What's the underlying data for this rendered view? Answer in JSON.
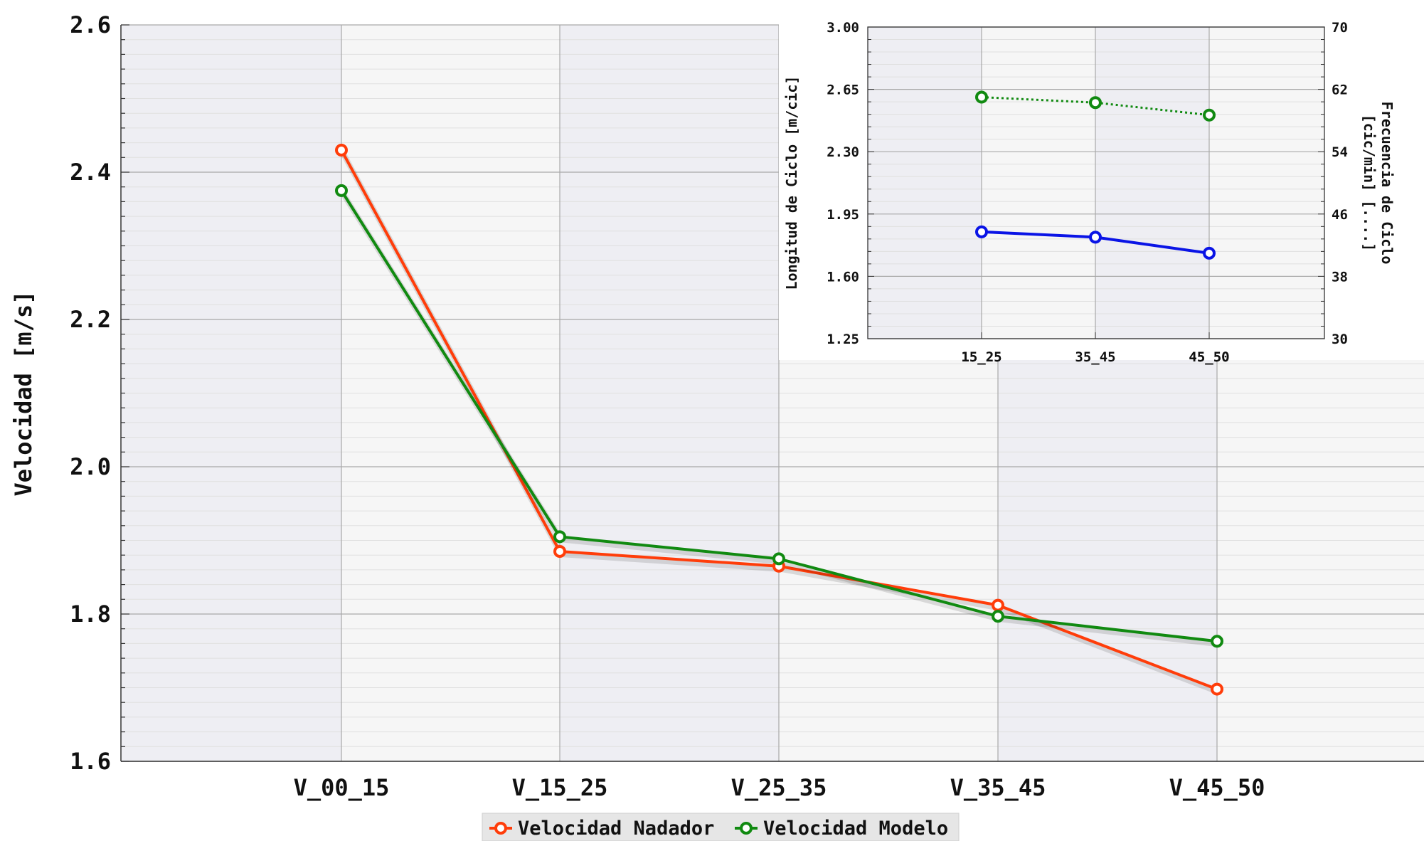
{
  "chart_data": [
    {
      "type": "line",
      "title": "",
      "xlabel": "",
      "ylabel": "Velocidad [m/s]",
      "categories": [
        "V_00_15",
        "V_15_25",
        "V_25_35",
        "V_35_45",
        "V_45_50"
      ],
      "ylim": [
        1.6,
        2.6
      ],
      "yticks": [
        "1.6",
        "1.8",
        "2.0",
        "2.2",
        "2.4",
        "2.6"
      ],
      "grid": true,
      "legend_position": "bottom-center",
      "series": [
        {
          "name": "Velocidad Nadador",
          "color": "#ff3d0a",
          "values": [
            2.43,
            1.885,
            1.865,
            1.812,
            1.698
          ]
        },
        {
          "name": "Velocidad Modelo",
          "color": "#118a11",
          "values": [
            2.375,
            1.905,
            1.875,
            1.797,
            1.763
          ]
        }
      ]
    },
    {
      "type": "line",
      "title": "",
      "xlabel": "",
      "ylabel": "Longitud de Ciclo [m/cic]",
      "ylabel_right": "Frecuencia de Ciclo [cic/min] [....]",
      "ylabel_right_lines": [
        "Frecuencia de Ciclo",
        "[cic/min] [....]"
      ],
      "categories": [
        "15_25",
        "35_45",
        "45_50"
      ],
      "tick_overlap_labels": [
        "15_25",
        "45_50"
      ],
      "ylim": [
        1.25,
        3.0
      ],
      "ylim_right": [
        30,
        70
      ],
      "yticks": [
        "1.25",
        "1.60",
        "1.95",
        "2.30",
        "2.65",
        "3.00"
      ],
      "yticks_right": [
        "30",
        "38",
        "46",
        "54",
        "62",
        "70"
      ],
      "grid": true,
      "series": [
        {
          "name": "",
          "axis": "left",
          "color": "#0a14e6",
          "style": "solid",
          "values": [
            1.85,
            1.82,
            1.73
          ]
        },
        {
          "name": "",
          "axis": "right",
          "color": "#118a11",
          "style": "dotted",
          "values": [
            61.0,
            60.3,
            58.7
          ]
        }
      ]
    }
  ]
}
